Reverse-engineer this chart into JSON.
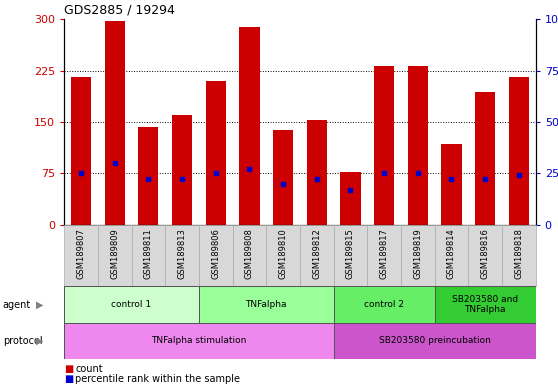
{
  "title": "GDS2885 / 19294",
  "samples": [
    "GSM189807",
    "GSM189809",
    "GSM189811",
    "GSM189813",
    "GSM189806",
    "GSM189808",
    "GSM189810",
    "GSM189812",
    "GSM189815",
    "GSM189817",
    "GSM189819",
    "GSM189814",
    "GSM189816",
    "GSM189818"
  ],
  "counts": [
    215,
    298,
    143,
    160,
    210,
    288,
    138,
    153,
    77,
    232,
    232,
    118,
    193,
    215
  ],
  "percentile_ranks": [
    25,
    30,
    22,
    22,
    25,
    27,
    20,
    22,
    17,
    25,
    25,
    22,
    22,
    24
  ],
  "ylim_left": [
    0,
    300
  ],
  "ylim_right": [
    0,
    100
  ],
  "yticks_left": [
    0,
    75,
    150,
    225,
    300
  ],
  "yticks_right": [
    0,
    25,
    50,
    75,
    100
  ],
  "bar_color": "#cc0000",
  "percentile_color": "#0000cc",
  "grid_color": "#000000",
  "agent_groups": [
    {
      "label": "control 1",
      "start": 0,
      "end": 3,
      "color": "#ccffcc"
    },
    {
      "label": "TNFalpha",
      "start": 4,
      "end": 7,
      "color": "#99ff99"
    },
    {
      "label": "control 2",
      "start": 8,
      "end": 10,
      "color": "#66ee66"
    },
    {
      "label": "SB203580 and\nTNFalpha",
      "start": 11,
      "end": 13,
      "color": "#33cc33"
    }
  ],
  "protocol_groups": [
    {
      "label": "TNFalpha stimulation",
      "start": 0,
      "end": 7,
      "color": "#ee88ee"
    },
    {
      "label": "SB203580 preincubation",
      "start": 8,
      "end": 13,
      "color": "#cc55cc"
    }
  ],
  "legend_count_color": "#cc0000",
  "legend_percentile_color": "#0000cc",
  "tick_label_color_left": "#cc0000",
  "tick_label_color_right": "#0000cc",
  "label_box_color": "#d8d8d8",
  "label_box_edge": "#aaaaaa"
}
